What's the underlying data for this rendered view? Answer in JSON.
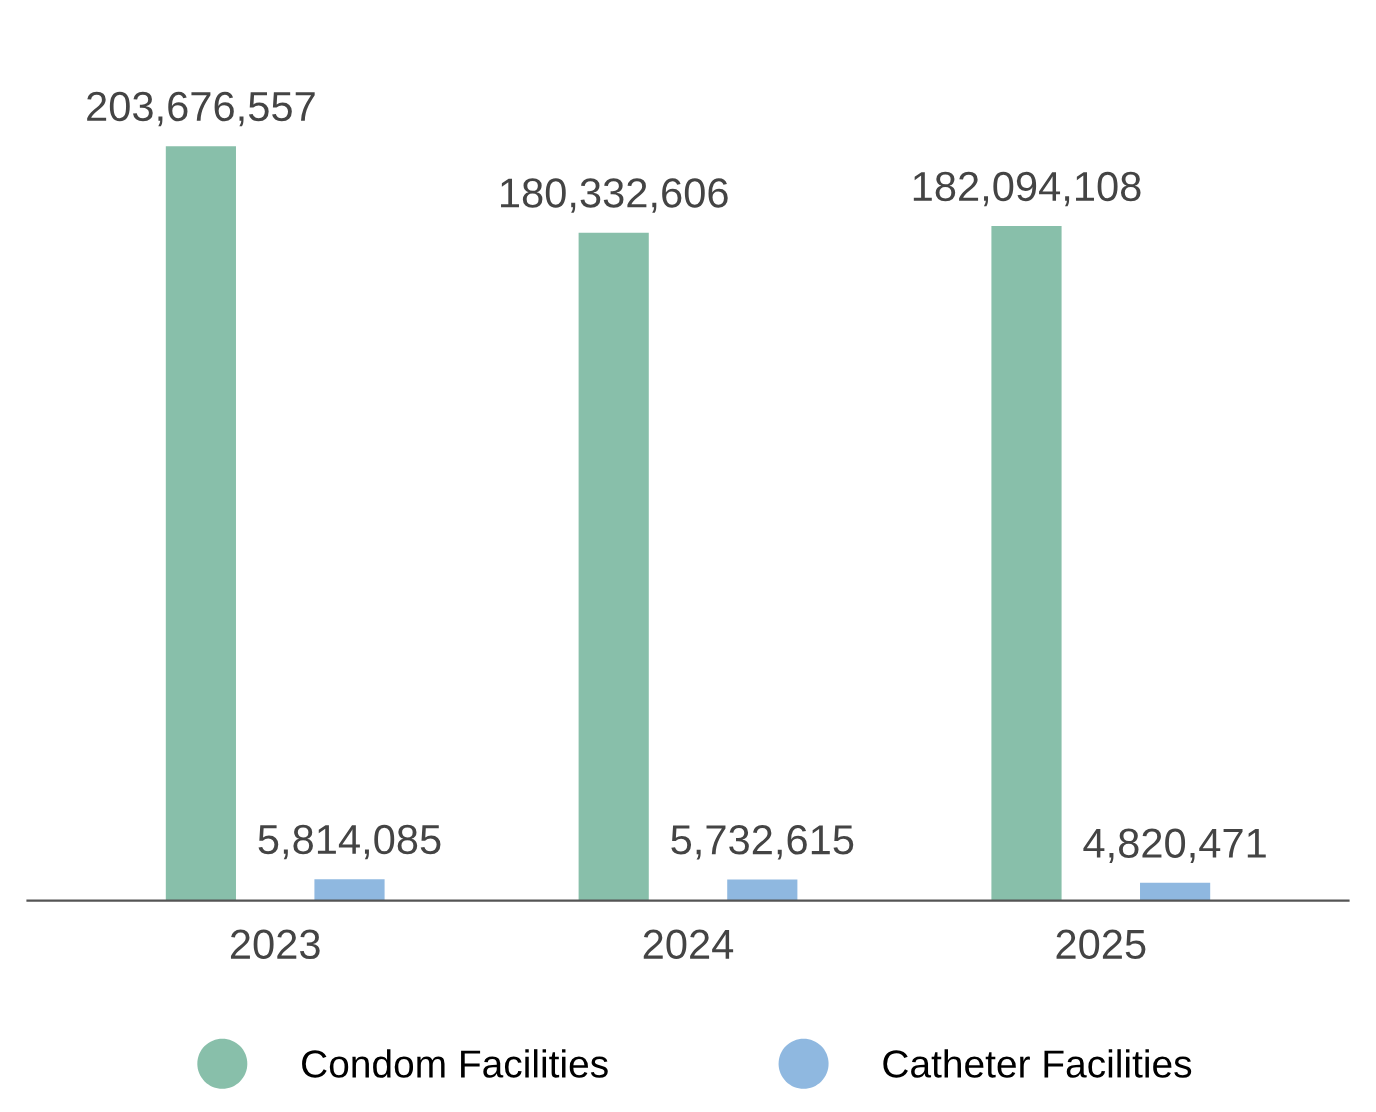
{
  "chart_data": {
    "type": "bar",
    "categories": [
      "2023",
      "2024",
      "2025"
    ],
    "series": [
      {
        "name": "Condom Facilities",
        "color": "#88bfaa",
        "values": [
          203676557,
          180332606,
          182094108
        ],
        "value_labels": [
          "203,676,557",
          "180,332,606",
          "182,094,108"
        ]
      },
      {
        "name": "Catheter Facilities",
        "color": "#8fb8e0",
        "values": [
          5814085,
          5732615,
          4820471
        ],
        "value_labels": [
          "5,814,085",
          "5,732,615",
          "4,820,471"
        ]
      }
    ],
    "legend": "bottom",
    "grid": false
  }
}
